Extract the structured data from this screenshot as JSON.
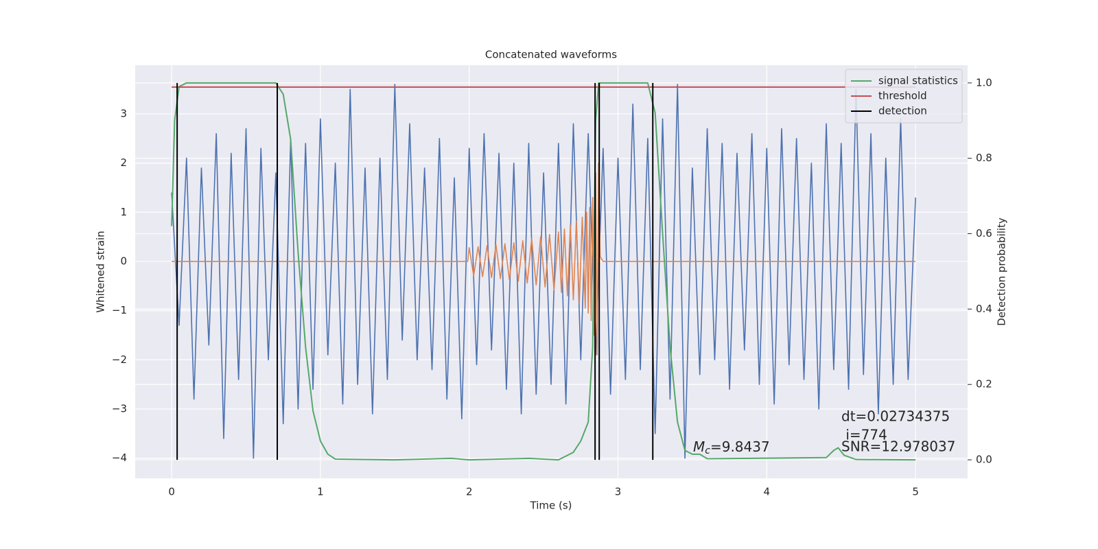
{
  "chart_data": {
    "type": "line",
    "title": "Concatenated waveforms",
    "xlabel": "Time (s)",
    "ylabel": "Whitened strain",
    "y2label": "Detection probability",
    "xlim": [
      -0.245,
      5.35
    ],
    "ylim": [
      -4.41,
      3.99
    ],
    "y2lim": [
      -0.049,
      1.047
    ],
    "xticks": [
      0,
      1,
      2,
      3,
      4,
      5
    ],
    "yticks": [
      {
        "value": -4,
        "label": "−4"
      },
      {
        "value": -3,
        "label": "−3"
      },
      {
        "value": -2,
        "label": "−2"
      },
      {
        "value": -1,
        "label": "−1"
      },
      0,
      1,
      2,
      3
    ],
    "y2ticks": [
      {
        "value": 0,
        "label": "0.0"
      },
      {
        "value": 0.2,
        "label": "0.2"
      },
      {
        "value": 0.4,
        "label": "0.4"
      },
      {
        "value": 0.6,
        "label": "0.6"
      },
      {
        "value": 0.8,
        "label": "0.8"
      },
      {
        "value": 1.0,
        "label": "1.0"
      }
    ],
    "grid": true,
    "legend": "upper right",
    "series": [
      {
        "color": "#4c72b0",
        "axis": "y",
        "x": [
          0,
          0.05,
          0.1,
          0.15,
          0.2,
          0.25,
          0.3,
          0.35,
          0.4,
          0.45,
          0.5,
          0.55,
          0.6,
          0.65,
          0.7,
          0.75,
          0.8,
          0.85,
          0.9,
          0.95,
          1.0,
          1.05,
          1.1,
          1.15,
          1.2,
          1.25,
          1.3,
          1.35,
          1.4,
          1.45,
          1.5,
          1.55,
          1.6,
          1.65,
          1.7,
          1.75,
          1.8,
          1.85,
          1.9,
          1.95,
          2.0,
          2.05,
          2.1,
          2.15,
          2.2,
          2.25,
          2.3,
          2.35,
          2.4,
          2.45,
          2.5,
          2.55,
          2.6,
          2.65,
          2.7,
          2.75,
          2.8,
          2.85,
          2.9,
          2.95,
          3.0,
          3.05,
          3.1,
          3.15,
          3.2,
          3.25,
          3.3,
          3.35,
          3.4,
          3.45,
          3.5,
          3.55,
          3.6,
          3.65,
          3.7,
          3.75,
          3.8,
          3.85,
          3.9,
          3.95,
          4.0,
          4.05,
          4.1,
          4.15,
          4.2,
          4.25,
          4.3,
          4.35,
          4.4,
          4.45,
          4.5,
          4.55,
          4.6,
          4.65,
          4.7,
          4.75,
          4.8,
          4.85,
          4.9,
          4.95,
          5.0
        ],
        "values": [
          1.4,
          -1.3,
          2.1,
          -2.8,
          1.9,
          -1.7,
          2.6,
          -3.6,
          2.2,
          -2.4,
          2.7,
          -4.0,
          2.3,
          -2.0,
          1.8,
          -3.3,
          2.5,
          -3.0,
          2.4,
          -2.6,
          2.9,
          -1.9,
          2.0,
          -2.9,
          3.5,
          -2.5,
          1.9,
          -3.1,
          2.1,
          -2.4,
          3.6,
          -1.6,
          2.8,
          -2.0,
          1.9,
          -2.2,
          2.5,
          -2.8,
          1.7,
          -3.2,
          2.3,
          -2.1,
          2.6,
          -1.8,
          2.2,
          -2.6,
          2.0,
          -3.1,
          2.4,
          -2.7,
          1.8,
          -2.5,
          2.4,
          -2.9,
          2.8,
          -2.0,
          2.6,
          -1.9,
          2.3,
          -2.7,
          2.1,
          -2.4,
          3.2,
          -2.2,
          2.5,
          -3.5,
          2.9,
          -2.8,
          3.6,
          -4.0,
          1.9,
          -2.3,
          2.7,
          -2.0,
          2.4,
          -2.6,
          2.2,
          -1.8,
          2.6,
          -2.5,
          2.3,
          -2.9,
          2.7,
          -2.1,
          2.5,
          -2.4,
          2.0,
          -3.0,
          2.8,
          -2.2,
          2.4,
          -2.6,
          3.5,
          -2.3,
          2.6,
          -3.1,
          2.1,
          -2.5,
          2.9,
          -2.4,
          1.3
        ]
      },
      {
        "color": "#dd8452",
        "axis": "y",
        "x": [
          0,
          1.99,
          2.0,
          2.03,
          2.06,
          2.09,
          2.12,
          2.15,
          2.18,
          2.21,
          2.24,
          2.27,
          2.3,
          2.33,
          2.36,
          2.39,
          2.42,
          2.45,
          2.48,
          2.51,
          2.54,
          2.57,
          2.6,
          2.62,
          2.64,
          2.66,
          2.68,
          2.7,
          2.72,
          2.74,
          2.76,
          2.78,
          2.79,
          2.8,
          2.81,
          2.82,
          2.83,
          2.84,
          2.85,
          2.86,
          2.87,
          2.88,
          2.9,
          5.0
        ],
        "values": [
          0,
          0,
          0.28,
          -0.29,
          0.3,
          -0.31,
          0.32,
          -0.33,
          0.34,
          -0.35,
          0.36,
          -0.37,
          0.38,
          -0.4,
          0.42,
          -0.44,
          0.46,
          -0.48,
          0.5,
          -0.52,
          0.55,
          -0.58,
          0.6,
          -0.63,
          0.66,
          -0.7,
          0.74,
          -0.78,
          0.82,
          -0.86,
          0.9,
          -0.95,
          1.0,
          -1.05,
          1.1,
          -1.2,
          1.3,
          -1.5,
          1.8,
          -1.9,
          2.0,
          0.1,
          0,
          0
        ]
      },
      {
        "name": "signal statistics",
        "color": "#55a868",
        "axis": "y2",
        "x": [
          0,
          0.02,
          0.05,
          0.1,
          0.7,
          0.75,
          0.8,
          0.85,
          0.9,
          0.95,
          1.0,
          1.05,
          1.1,
          1.5,
          1.88,
          2.0,
          2.4,
          2.6,
          2.7,
          2.75,
          2.8,
          2.83,
          2.85,
          2.87,
          3.2,
          3.25,
          3.3,
          3.35,
          3.4,
          3.45,
          3.5,
          3.55,
          3.6,
          4.4,
          4.45,
          4.48,
          4.52,
          4.6,
          5.0
        ],
        "values": [
          0.62,
          0.9,
          0.99,
          1.0,
          1.0,
          0.97,
          0.85,
          0.55,
          0.3,
          0.13,
          0.05,
          0.015,
          0.002,
          0.0,
          0.004,
          0.0,
          0.004,
          0.0,
          0.02,
          0.05,
          0.1,
          0.3,
          0.9,
          1.0,
          1.0,
          0.92,
          0.6,
          0.3,
          0.1,
          0.025,
          0.015,
          0.015,
          0.003,
          0.006,
          0.025,
          0.032,
          0.012,
          0.001,
          0.0
        ]
      },
      {
        "name": "threshold",
        "color": "#c44e52",
        "axis": "y2",
        "x": [
          0,
          5.0
        ],
        "values": [
          0.989,
          0.989
        ]
      },
      {
        "name": "detection",
        "color": "#000000",
        "axis": "y2",
        "x": [
          0.037,
          0.037,
          null,
          0.71,
          0.71,
          null,
          2.846,
          2.846,
          null,
          2.874,
          2.874,
          null,
          3.234,
          3.234
        ],
        "values": [
          0,
          1,
          null,
          0,
          1,
          null,
          0,
          1,
          null,
          0,
          1,
          null,
          0,
          1
        ]
      }
    ],
    "annotations": [
      {
        "text": "dt=0.02734375"
      },
      {
        "text": " i=774"
      },
      {
        "symbol": "M",
        "subscript": "c",
        "text": "=9.8437"
      },
      {
        "text": "SNR=12.978037"
      }
    ]
  }
}
